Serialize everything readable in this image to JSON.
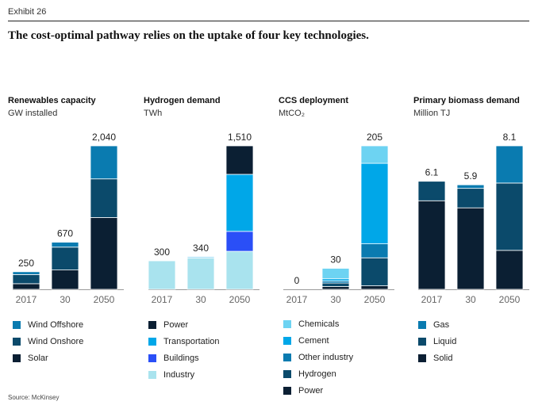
{
  "exhibit": "Exhibit 26",
  "headline": "The cost-optimal pathway relies on the uptake of four key technologies.",
  "source": "Source: McKinsey",
  "colors": {
    "darkest_navy": "#0b1f33",
    "dark_teal": "#0b4a6b",
    "mid_blue": "#0a7bb0",
    "bright_blue": "#00a7e8",
    "light_cyan": "#6dd3f2",
    "pale_cyan": "#a9e3ee",
    "royal_blue": "#2a4ff7",
    "axis": "#999999"
  },
  "chart_data": [
    {
      "type": "bar",
      "stacked": true,
      "title": "Renewables capacity",
      "unit": "GW installed",
      "categories": [
        "2017",
        "30",
        "2050"
      ],
      "totals": [
        "250",
        "670",
        "2,040"
      ],
      "total_values": [
        250,
        670,
        2040
      ],
      "ylim": [
        0,
        2040
      ],
      "series": [
        {
          "name": "Solar",
          "color": "#0b1f33",
          "values": [
            80,
            275,
            1020
          ]
        },
        {
          "name": "Wind Onshore",
          "color": "#0b4a6b",
          "values": [
            130,
            325,
            550
          ]
        },
        {
          "name": "Wind Offshore",
          "color": "#0a7bb0",
          "values": [
            40,
            70,
            470
          ]
        }
      ],
      "legend": [
        "Wind Offshore",
        "Wind Onshore",
        "Solar"
      ],
      "legend_colors": [
        "#0a7bb0",
        "#0b4a6b",
        "#0b1f33"
      ]
    },
    {
      "type": "bar",
      "stacked": true,
      "title": "Hydrogen demand",
      "unit": "TWh",
      "categories": [
        "2017",
        "30",
        "2050"
      ],
      "totals": [
        "300",
        "340",
        "1,510"
      ],
      "total_values": [
        300,
        340,
        1510
      ],
      "ylim": [
        0,
        1510
      ],
      "series": [
        {
          "name": "Industry",
          "color": "#a9e3ee",
          "values": [
            300,
            330,
            400
          ]
        },
        {
          "name": "Buildings",
          "color": "#2a4ff7",
          "values": [
            0,
            0,
            210
          ]
        },
        {
          "name": "Transportation",
          "color": "#00a7e8",
          "values": [
            0,
            10,
            600
          ]
        },
        {
          "name": "Power",
          "color": "#0b1f33",
          "values": [
            0,
            0,
            300
          ]
        }
      ],
      "legend": [
        "Power",
        "Transportation",
        "Buildings",
        "Industry"
      ],
      "legend_colors": [
        "#0b1f33",
        "#00a7e8",
        "#2a4ff7",
        "#a9e3ee"
      ]
    },
    {
      "type": "bar",
      "stacked": true,
      "title": "CCS deployment",
      "unit": "MtCO₂",
      "categories": [
        "2017",
        "30",
        "2050"
      ],
      "totals": [
        "0",
        "30",
        "205"
      ],
      "total_values": [
        0,
        30,
        205
      ],
      "ylim": [
        0,
        205
      ],
      "series": [
        {
          "name": "Power",
          "color": "#0b1f33",
          "values": [
            0,
            4,
            5
          ]
        },
        {
          "name": "Hydrogen",
          "color": "#0b4a6b",
          "values": [
            0,
            5,
            40
          ]
        },
        {
          "name": "Other industry",
          "color": "#0a7bb0",
          "values": [
            0,
            3,
            20
          ]
        },
        {
          "name": "Cement",
          "color": "#00a7e8",
          "values": [
            0,
            3,
            115
          ]
        },
        {
          "name": "Chemicals",
          "color": "#6dd3f2",
          "values": [
            0,
            15,
            25
          ]
        }
      ],
      "legend": [
        "Chemicals",
        "Cement",
        "Other industry",
        "Hydrogen",
        "Power"
      ],
      "legend_colors": [
        "#6dd3f2",
        "#00a7e8",
        "#0a7bb0",
        "#0b4a6b",
        "#0b1f33"
      ]
    },
    {
      "type": "bar",
      "stacked": true,
      "title": "Primary biomass demand",
      "unit": "Million TJ",
      "categories": [
        "2017",
        "30",
        "2050"
      ],
      "totals": [
        "6.1",
        "5.9",
        "8.1"
      ],
      "total_values": [
        6.1,
        5.9,
        8.1
      ],
      "ylim": [
        0,
        8.1
      ],
      "series": [
        {
          "name": "Solid",
          "color": "#0b1f33",
          "values": [
            5.0,
            4.6,
            2.2
          ]
        },
        {
          "name": "Liquid",
          "color": "#0b4a6b",
          "values": [
            1.1,
            1.1,
            3.8
          ]
        },
        {
          "name": "Gas",
          "color": "#0a7bb0",
          "values": [
            0,
            0.2,
            2.1
          ]
        }
      ],
      "legend": [
        "Gas",
        "Liquid",
        "Solid"
      ],
      "legend_colors": [
        "#0a7bb0",
        "#0b4a6b",
        "#0b1f33"
      ]
    }
  ]
}
